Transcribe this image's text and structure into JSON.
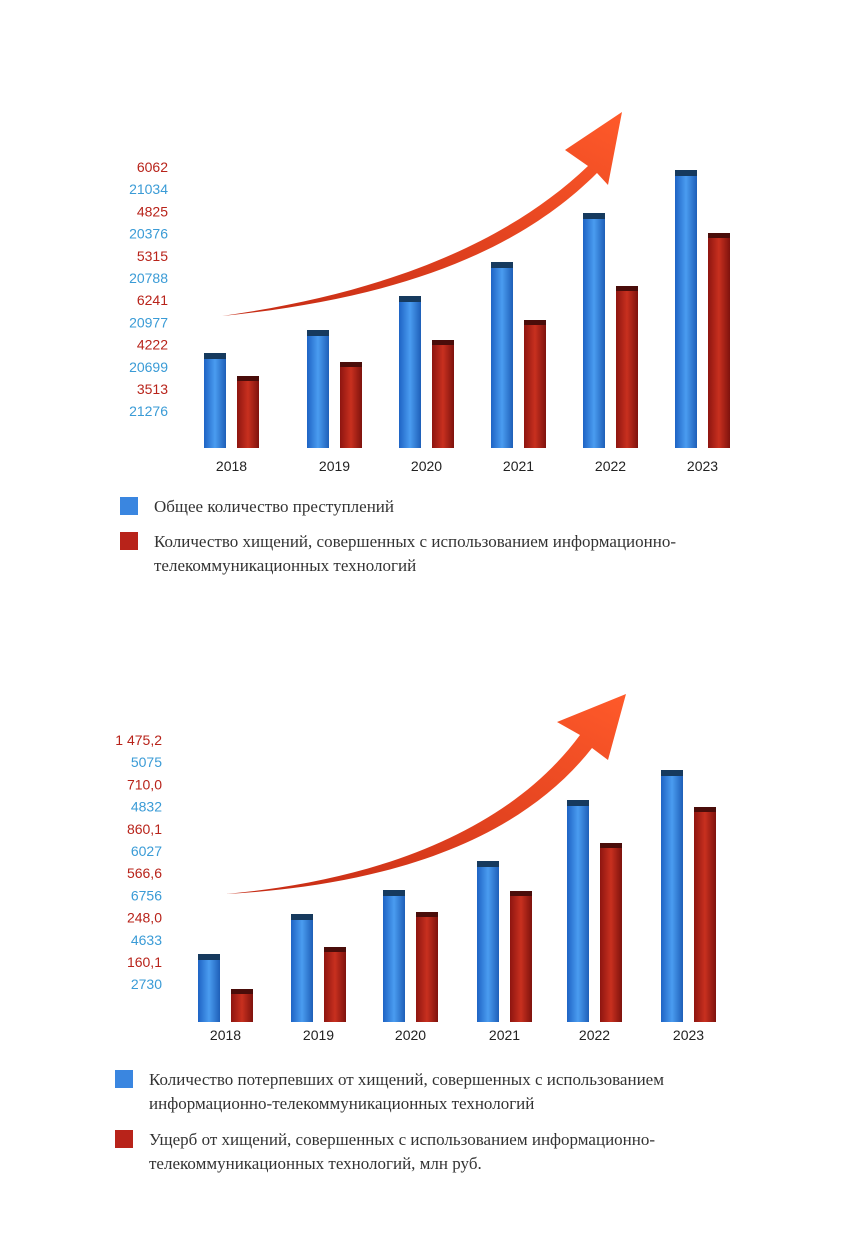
{
  "chart_data": [
    {
      "type": "bar",
      "categories": [
        "2018",
        "2019",
        "2020",
        "2021",
        "2022",
        "2023"
      ],
      "series": [
        {
          "name": "Общее количество преступлений",
          "color": "#3a86e0",
          "values": [
            21276,
            20699,
            20977,
            20788,
            20376,
            21034
          ]
        },
        {
          "name": "Количество хищений, совершенных с использованием информационно-телекоммуникационных технологий",
          "color": "#b8231a",
          "values": [
            3513,
            4222,
            6241,
            5315,
            4825,
            6062
          ]
        }
      ],
      "value_labels": [
        "6062",
        "21034",
        "4825",
        "20376",
        "5315",
        "20788",
        "6241",
        "20977",
        "4222",
        "20699",
        "3513",
        "21276"
      ],
      "value_label_colors": [
        "#b8231a",
        "#3a9bd6",
        "#b8231a",
        "#3a9bd6",
        "#b8231a",
        "#3a9bd6",
        "#b8231a",
        "#3a9bd6",
        "#b8231a",
        "#3a9bd6",
        "#b8231a",
        "#3a9bd6"
      ],
      "trend_arrow": "red curved arrow rising to the right"
    },
    {
      "type": "bar",
      "categories": [
        "2018",
        "2019",
        "2020",
        "2021",
        "2022",
        "2023"
      ],
      "series": [
        {
          "name": "Количество потерпевших от хищений, совершенных с использованием информационно-телекоммуникационных технологий",
          "color": "#3a86e0",
          "values": [
            2730,
            4633,
            6756,
            6027,
            4832,
            5075
          ]
        },
        {
          "name": "Ущерб от хищений, совершенных с использованием информационно-телекоммуникационных технологий, млн руб.",
          "color": "#b8231a",
          "values": [
            160.1,
            248.0,
            566.6,
            860.1,
            710.0,
            1475.2
          ]
        }
      ],
      "value_labels": [
        "1 475,2",
        "5075",
        "710,0",
        "4832",
        "860,1",
        "6027",
        "566,6",
        "6756",
        "248,0",
        "4633",
        "160,1",
        "2730"
      ],
      "value_label_colors": [
        "#b8231a",
        "#3a9bd6",
        "#b8231a",
        "#3a9bd6",
        "#b8231a",
        "#3a9bd6",
        "#b8231a",
        "#3a9bd6",
        "#b8231a",
        "#3a9bd6",
        "#b8231a",
        "#3a9bd6"
      ],
      "trend_arrow": "red curved arrow rising to the right"
    }
  ],
  "legend1": {
    "item1": "Общее количество преступлений",
    "item2": "Количество хищений, совершенных с использованием информационно-телекоммуникационных технологий"
  },
  "legend2": {
    "item1": "Количество потерпевших от хищений, совершенных с использованием информационно-телекоммуникационных технологий",
    "item2": "Ущерб от хищений, совершенных с использованием информационно-телекоммуникационных технологий, млн руб."
  },
  "colors": {
    "blue": "#3a86e0",
    "red": "#b8231a",
    "label_blue": "#3a9bd6",
    "label_red": "#b8231a",
    "arrow": "#e0401f"
  }
}
